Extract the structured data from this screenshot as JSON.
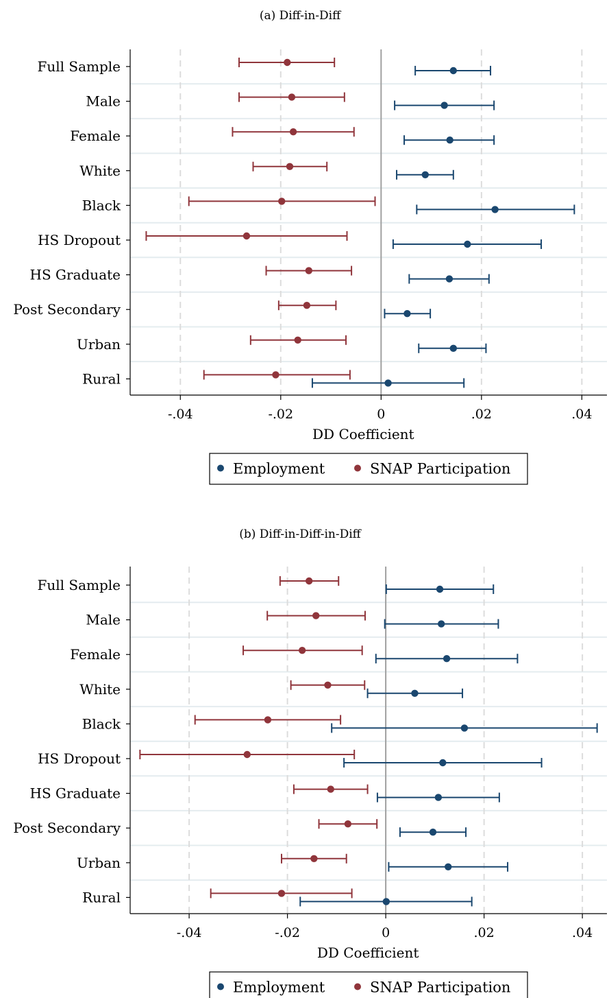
{
  "chart_data": [
    {
      "type": "coefficient-plot",
      "title": "(a) Diff-in-Diff",
      "xlabel": "DD Coefficient",
      "ylabel": "",
      "xlim": [
        -0.05,
        0.045
      ],
      "xticks": [
        -0.04,
        -0.02,
        0,
        0.02,
        0.04
      ],
      "xtick_labels": [
        "-.04",
        "-.02",
        "0",
        ".02",
        ".04"
      ],
      "grid": "vertical dashed at x ticks; horizontal rules between categories",
      "reference_line": 0,
      "legend_position": "bottom-center",
      "categories": [
        "Full Sample",
        "Male",
        "Female",
        "White",
        "Black",
        "HS Dropout",
        "HS Graduate",
        "Post Secondary",
        "Urban",
        "Rural"
      ],
      "series": [
        {
          "name": "Employment",
          "color": "#1a476f",
          "estimates": [
            0.0144,
            0.0126,
            0.0137,
            0.0088,
            0.0227,
            0.0172,
            0.0136,
            0.0052,
            0.0144,
            0.0014
          ],
          "ci_low": [
            0.0068,
            0.0027,
            0.0046,
            0.0031,
            0.0071,
            0.0024,
            0.0056,
            0.0007,
            0.0075,
            -0.0137
          ],
          "ci_high": [
            0.0218,
            0.0225,
            0.0225,
            0.0144,
            0.0385,
            0.0319,
            0.0215,
            0.0098,
            0.0209,
            0.0165
          ]
        },
        {
          "name": "SNAP Participation",
          "color": "#90353b",
          "estimates": [
            -0.0187,
            -0.0178,
            -0.0175,
            -0.0182,
            -0.0198,
            -0.0268,
            -0.0144,
            -0.0148,
            -0.0166,
            -0.021
          ],
          "ci_low": [
            -0.0283,
            -0.0283,
            -0.0296,
            -0.0255,
            -0.0383,
            -0.0468,
            -0.0229,
            -0.0204,
            -0.026,
            -0.0353
          ],
          "ci_high": [
            -0.0093,
            -0.0073,
            -0.0054,
            -0.0108,
            -0.0012,
            -0.0068,
            -0.0059,
            -0.009,
            -0.007,
            -0.0062
          ]
        }
      ]
    },
    {
      "type": "coefficient-plot",
      "title": "(b) Diff-in-Diff-in-Diff",
      "xlabel": "DD Coefficient",
      "ylabel": "",
      "xlim": [
        -0.052,
        0.045
      ],
      "xticks": [
        -0.04,
        -0.02,
        0,
        0.02,
        0.04
      ],
      "xtick_labels": [
        "-.04",
        "-.02",
        "0",
        ".02",
        ".04"
      ],
      "grid": "vertical dashed at x ticks; horizontal rules between categories",
      "reference_line": 0,
      "legend_position": "bottom-center",
      "categories": [
        "Full Sample",
        "Male",
        "Female",
        "White",
        "Black",
        "HS Dropout",
        "HS Graduate",
        "Post Secondary",
        "Urban",
        "Rural"
      ],
      "series": [
        {
          "name": "Employment",
          "color": "#1a476f",
          "estimates": [
            0.011,
            0.0113,
            0.0124,
            0.0059,
            0.016,
            0.0116,
            0.0107,
            0.0096,
            0.0127,
            0.0001
          ],
          "ci_low": [
            0.0001,
            -0.0002,
            -0.002,
            -0.0037,
            -0.011,
            -0.0085,
            -0.0017,
            0.0029,
            0.0006,
            -0.0174
          ],
          "ci_high": [
            0.0219,
            0.0229,
            0.0268,
            0.0156,
            0.043,
            0.0317,
            0.0231,
            0.0163,
            0.0248,
            0.0175
          ]
        },
        {
          "name": "SNAP Participation",
          "color": "#90353b",
          "estimates": [
            -0.0156,
            -0.0142,
            -0.017,
            -0.0118,
            -0.024,
            -0.0282,
            -0.0112,
            -0.0077,
            -0.0146,
            -0.0212
          ],
          "ci_low": [
            -0.0215,
            -0.0241,
            -0.029,
            -0.0193,
            -0.0388,
            -0.05,
            -0.0187,
            -0.0136,
            -0.0212,
            -0.0356
          ],
          "ci_high": [
            -0.0096,
            -0.0042,
            -0.0048,
            -0.0043,
            -0.0092,
            -0.0064,
            -0.0037,
            -0.0018,
            -0.008,
            -0.0069
          ]
        }
      ]
    }
  ]
}
